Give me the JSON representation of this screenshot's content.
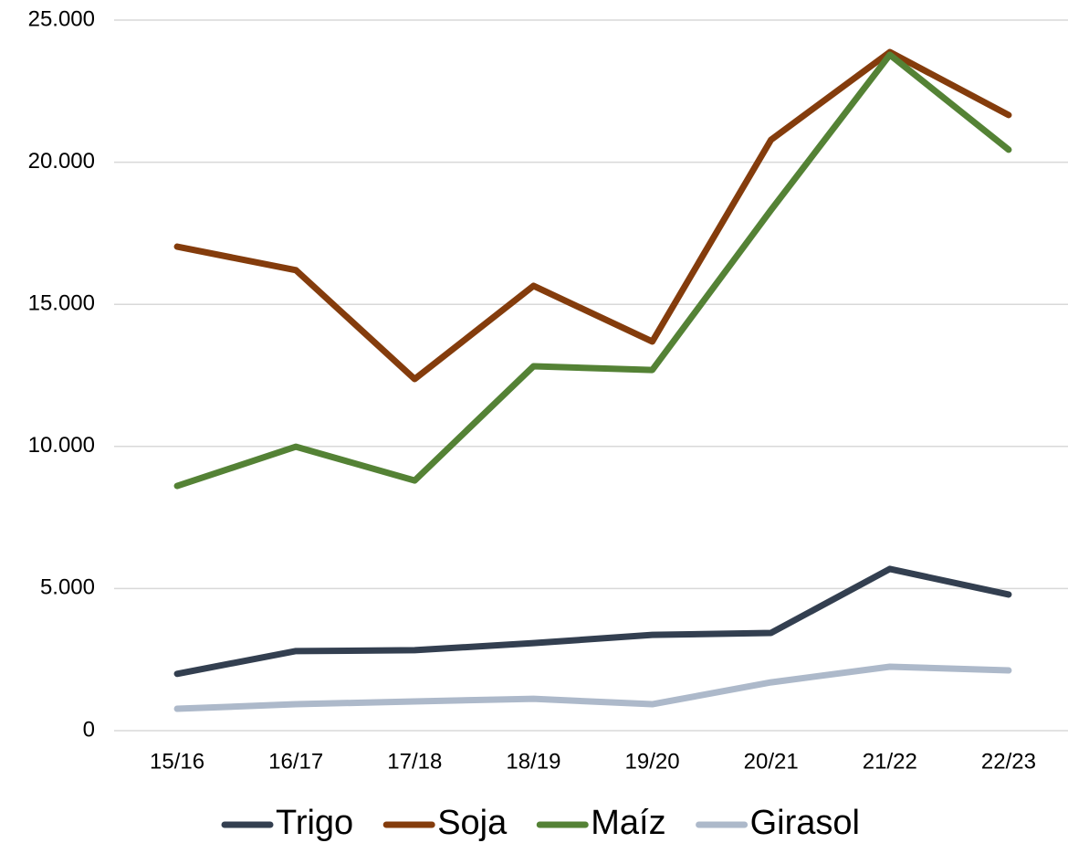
{
  "chart_data": {
    "type": "line",
    "categories": [
      "15/16",
      "16/17",
      "17/18",
      "18/19",
      "19/20",
      "20/21",
      "21/22",
      "22/23"
    ],
    "series": [
      {
        "name": "Trigo",
        "color": "#333f50",
        "values": [
          2000,
          2800,
          2830,
          3080,
          3370,
          3440,
          5690,
          4790
        ]
      },
      {
        "name": "Soja",
        "color": "#843c0c",
        "values": [
          17030,
          16200,
          12370,
          15650,
          13690,
          20790,
          23875,
          21660
        ]
      },
      {
        "name": "Maíz",
        "color": "#548235",
        "values": [
          8610,
          9990,
          8800,
          12820,
          12690,
          18320,
          23780,
          20440
        ]
      },
      {
        "name": "Girasol",
        "color": "#adb9ca",
        "values": [
          770,
          930,
          1030,
          1120,
          930,
          1700,
          2250,
          2120
        ]
      }
    ],
    "ylim": [
      0,
      25000
    ],
    "yticks": [
      0,
      {
        "value": 5000,
        "label": "5.000"
      },
      {
        "value": 10000,
        "label": "10.000"
      },
      {
        "value": 15000,
        "label": "15.000"
      },
      {
        "value": 20000,
        "label": "20.000"
      },
      {
        "value": 25000,
        "label": "25.000"
      }
    ],
    "grid": true,
    "legend": "bottom"
  }
}
